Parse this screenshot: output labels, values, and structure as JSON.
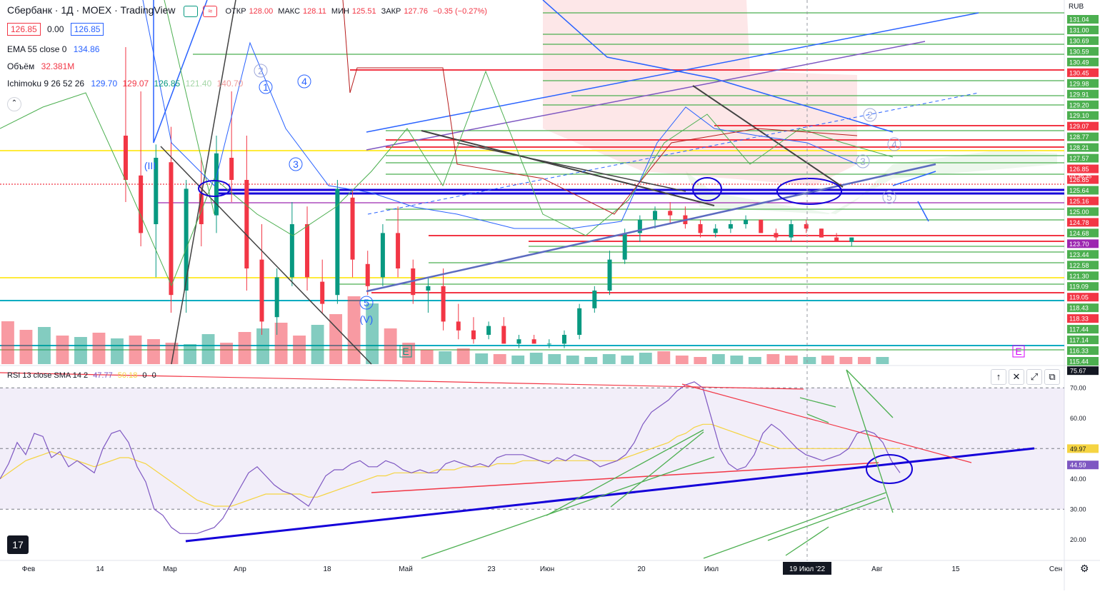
{
  "header": {
    "symbol": "Сбербанк · 1Д · MOEX · TradingView",
    "open_label": "ОТКР",
    "open": "128.00",
    "high_label": "МАКС",
    "high": "128.11",
    "low_label": "МИН",
    "low": "125.51",
    "close_label": "ЗАКР",
    "close": "127.76",
    "change": "−0.35 (−0.27%)",
    "bid": "126.85",
    "spread": "0.00",
    "ask": "126.85"
  },
  "indicators": {
    "ema_label": "EMA 55 close 0",
    "ema_value": "134.86",
    "volume_label": "Объём",
    "volume_value": "32.381M",
    "ichimoku_label": "Ichimoku 9 26 52 26",
    "ichimoku_values": [
      "129.70",
      "129.07",
      "126.85",
      "121.40",
      "140.70"
    ]
  },
  "rsi_panel": {
    "label": "RSI 13 close SMA 14 2",
    "values": [
      "47.77",
      "50.18",
      "0",
      "0"
    ]
  },
  "currency": "RUB",
  "colors": {
    "up": "#089981",
    "down": "#f23645",
    "rsi": "#7e57c2",
    "rsi_ma": "#f5d442",
    "trend": "#1400d9",
    "level_green": "#4caf50",
    "level_red": "#f23645",
    "cyan": "#00acc1",
    "yellow": "#ffeb3b"
  },
  "chart_data": [
    {
      "type": "candlestick",
      "x_ticks": [
        "Фев",
        "14",
        "Мар",
        "Апр",
        "18",
        "Май",
        "23",
        "Июн",
        "20",
        "Июл",
        "19 Июл '22",
        "Авг",
        "15",
        "Сен"
      ],
      "y_ticks": [
        "131.04",
        "131.00",
        "130.69",
        "130.59",
        "130.49",
        "130.45",
        "129.98",
        "129.91",
        "129.20",
        "129.10",
        "129.07",
        "128.77",
        "128.21",
        "127.57",
        "126.85",
        "126.85",
        "125.64",
        "125.16",
        "125.00",
        "124.78",
        "124.68",
        "123.70",
        "123.44",
        "122.58",
        "121.30",
        "119.09",
        "119.05",
        "118.43",
        "118.33",
        "117.44",
        "117.14",
        "116.33",
        "115.44"
      ],
      "countdown": "03:36:35",
      "wave_labels": [
        "1",
        "2",
        "3",
        "4",
        "5",
        "(V)",
        "(III",
        "2",
        "3",
        "4",
        "5",
        "E",
        "E"
      ],
      "ohlc": [
        [
          50,
          70,
          35,
          40
        ],
        [
          41,
          60,
          25,
          28
        ],
        [
          30,
          48,
          18,
          45
        ],
        [
          44,
          52,
          10,
          14
        ],
        [
          15,
          40,
          10,
          38
        ],
        [
          37,
          45,
          25,
          30
        ],
        [
          32,
          50,
          28,
          46
        ],
        [
          45,
          60,
          35,
          40
        ],
        [
          40,
          50,
          15,
          20
        ],
        [
          22,
          30,
          5,
          8
        ],
        [
          9,
          20,
          5,
          18
        ],
        [
          18,
          35,
          16,
          30
        ],
        [
          30,
          34,
          15,
          18
        ],
        [
          17,
          22,
          10,
          12
        ],
        [
          14,
          40,
          12,
          38
        ],
        [
          36,
          38,
          18,
          22
        ],
        [
          21,
          24,
          14,
          16
        ],
        [
          18,
          30,
          16,
          28
        ],
        [
          28,
          34,
          18,
          20
        ],
        [
          20,
          22,
          12,
          14
        ],
        [
          15,
          18,
          10,
          16
        ],
        [
          16,
          20,
          6,
          8
        ],
        [
          8,
          12,
          4,
          6
        ],
        [
          6,
          9,
          3,
          4
        ],
        [
          5,
          8,
          4,
          7
        ],
        [
          7,
          9,
          3,
          3
        ],
        [
          3,
          5,
          2,
          4
        ],
        [
          4,
          5,
          3,
          3
        ],
        [
          3,
          4,
          2,
          3
        ],
        [
          3,
          6,
          2,
          5
        ],
        [
          5,
          12,
          4,
          11
        ],
        [
          11,
          16,
          10,
          15
        ],
        [
          15,
          24,
          14,
          22
        ],
        [
          22,
          29,
          21,
          28
        ],
        [
          28,
          32,
          26,
          31
        ],
        [
          31,
          34,
          29,
          33
        ],
        [
          33,
          35,
          30,
          32
        ],
        [
          32,
          34,
          29,
          30
        ],
        [
          30,
          31,
          27,
          28
        ],
        [
          28,
          30,
          27,
          29
        ],
        [
          29,
          31,
          28,
          30
        ],
        [
          30,
          32,
          29,
          31
        ],
        [
          31,
          31,
          28,
          28
        ],
        [
          28,
          29,
          26,
          27
        ],
        [
          27,
          31,
          26,
          30
        ],
        [
          30,
          31,
          28,
          29
        ],
        [
          29,
          29,
          27,
          27
        ],
        [
          27,
          28,
          26,
          26
        ],
        [
          26,
          27,
          25,
          27
        ]
      ],
      "volume": [
        60,
        48,
        52,
        40,
        38,
        44,
        36,
        40,
        35,
        30,
        28,
        42,
        30,
        45,
        50,
        58,
        40,
        55,
        70,
        95,
        85,
        50,
        30,
        20,
        18,
        22,
        15,
        14,
        12,
        16,
        14,
        12,
        10,
        14,
        12,
        16,
        18,
        12,
        10,
        14,
        12,
        10,
        14,
        12,
        10,
        12,
        10,
        10,
        10
      ]
    },
    {
      "type": "line",
      "label": "RSI 13 close SMA 14 2",
      "y_ticks": [
        "70.00",
        "60.00",
        "50.00",
        "40.00",
        "30.00",
        "20.00"
      ],
      "ylim": [
        15,
        75
      ],
      "price_labels": [
        "75.67",
        "49.97",
        "44.59"
      ],
      "series": [
        {
          "values": [
            40,
            45,
            52,
            48,
            55,
            54,
            47,
            49,
            44,
            46,
            44,
            42,
            50,
            55,
            56,
            52,
            44,
            39,
            30,
            28,
            24,
            22,
            22,
            22,
            23,
            24,
            27,
            32,
            37,
            42,
            44,
            41,
            38,
            36,
            35,
            33,
            31,
            36,
            41,
            43,
            43,
            45,
            46,
            44,
            44,
            46,
            45,
            43,
            42,
            43,
            42,
            42,
            45,
            46,
            45,
            44,
            45,
            44,
            47,
            48,
            48,
            48,
            47,
            46,
            45,
            47,
            46,
            48,
            47,
            46,
            44,
            45,
            46,
            48,
            52,
            58,
            62,
            64,
            66,
            69,
            71,
            72,
            70,
            60,
            50,
            45,
            43,
            44,
            48,
            55,
            58,
            56,
            53,
            50,
            48,
            47,
            46,
            47,
            48,
            50,
            55,
            56,
            55,
            52,
            46,
            42
          ]
        },
        {
          "values": [
            40,
            42,
            44,
            46,
            47,
            48,
            49,
            48,
            47,
            46,
            45,
            44,
            45,
            46,
            47,
            47,
            46,
            45,
            43,
            41,
            39,
            37,
            35,
            33,
            32,
            31,
            31,
            31,
            32,
            33,
            34,
            35,
            35,
            35,
            35,
            35,
            34,
            34,
            35,
            36,
            37,
            38,
            39,
            40,
            41,
            41,
            42,
            42,
            42,
            42,
            42,
            43,
            43,
            43,
            44,
            44,
            44,
            44,
            45,
            45,
            45,
            46,
            46,
            46,
            46,
            46,
            46,
            46,
            46,
            46,
            46,
            46,
            46,
            47,
            48,
            49,
            50,
            51,
            52,
            54,
            55,
            57,
            58,
            58,
            57,
            56,
            55,
            54,
            53,
            52,
            51,
            50,
            50,
            50,
            50,
            50,
            50,
            50,
            50,
            50,
            50,
            50,
            50,
            50,
            50,
            50
          ]
        }
      ],
      "x_ticks": [
        "Фев",
        "14",
        "Мар",
        "Апр",
        "18",
        "Май",
        "23",
        "Июн",
        "20",
        "Июл",
        "19 Июл '22",
        "Авг",
        "15",
        "Сен"
      ]
    }
  ]
}
